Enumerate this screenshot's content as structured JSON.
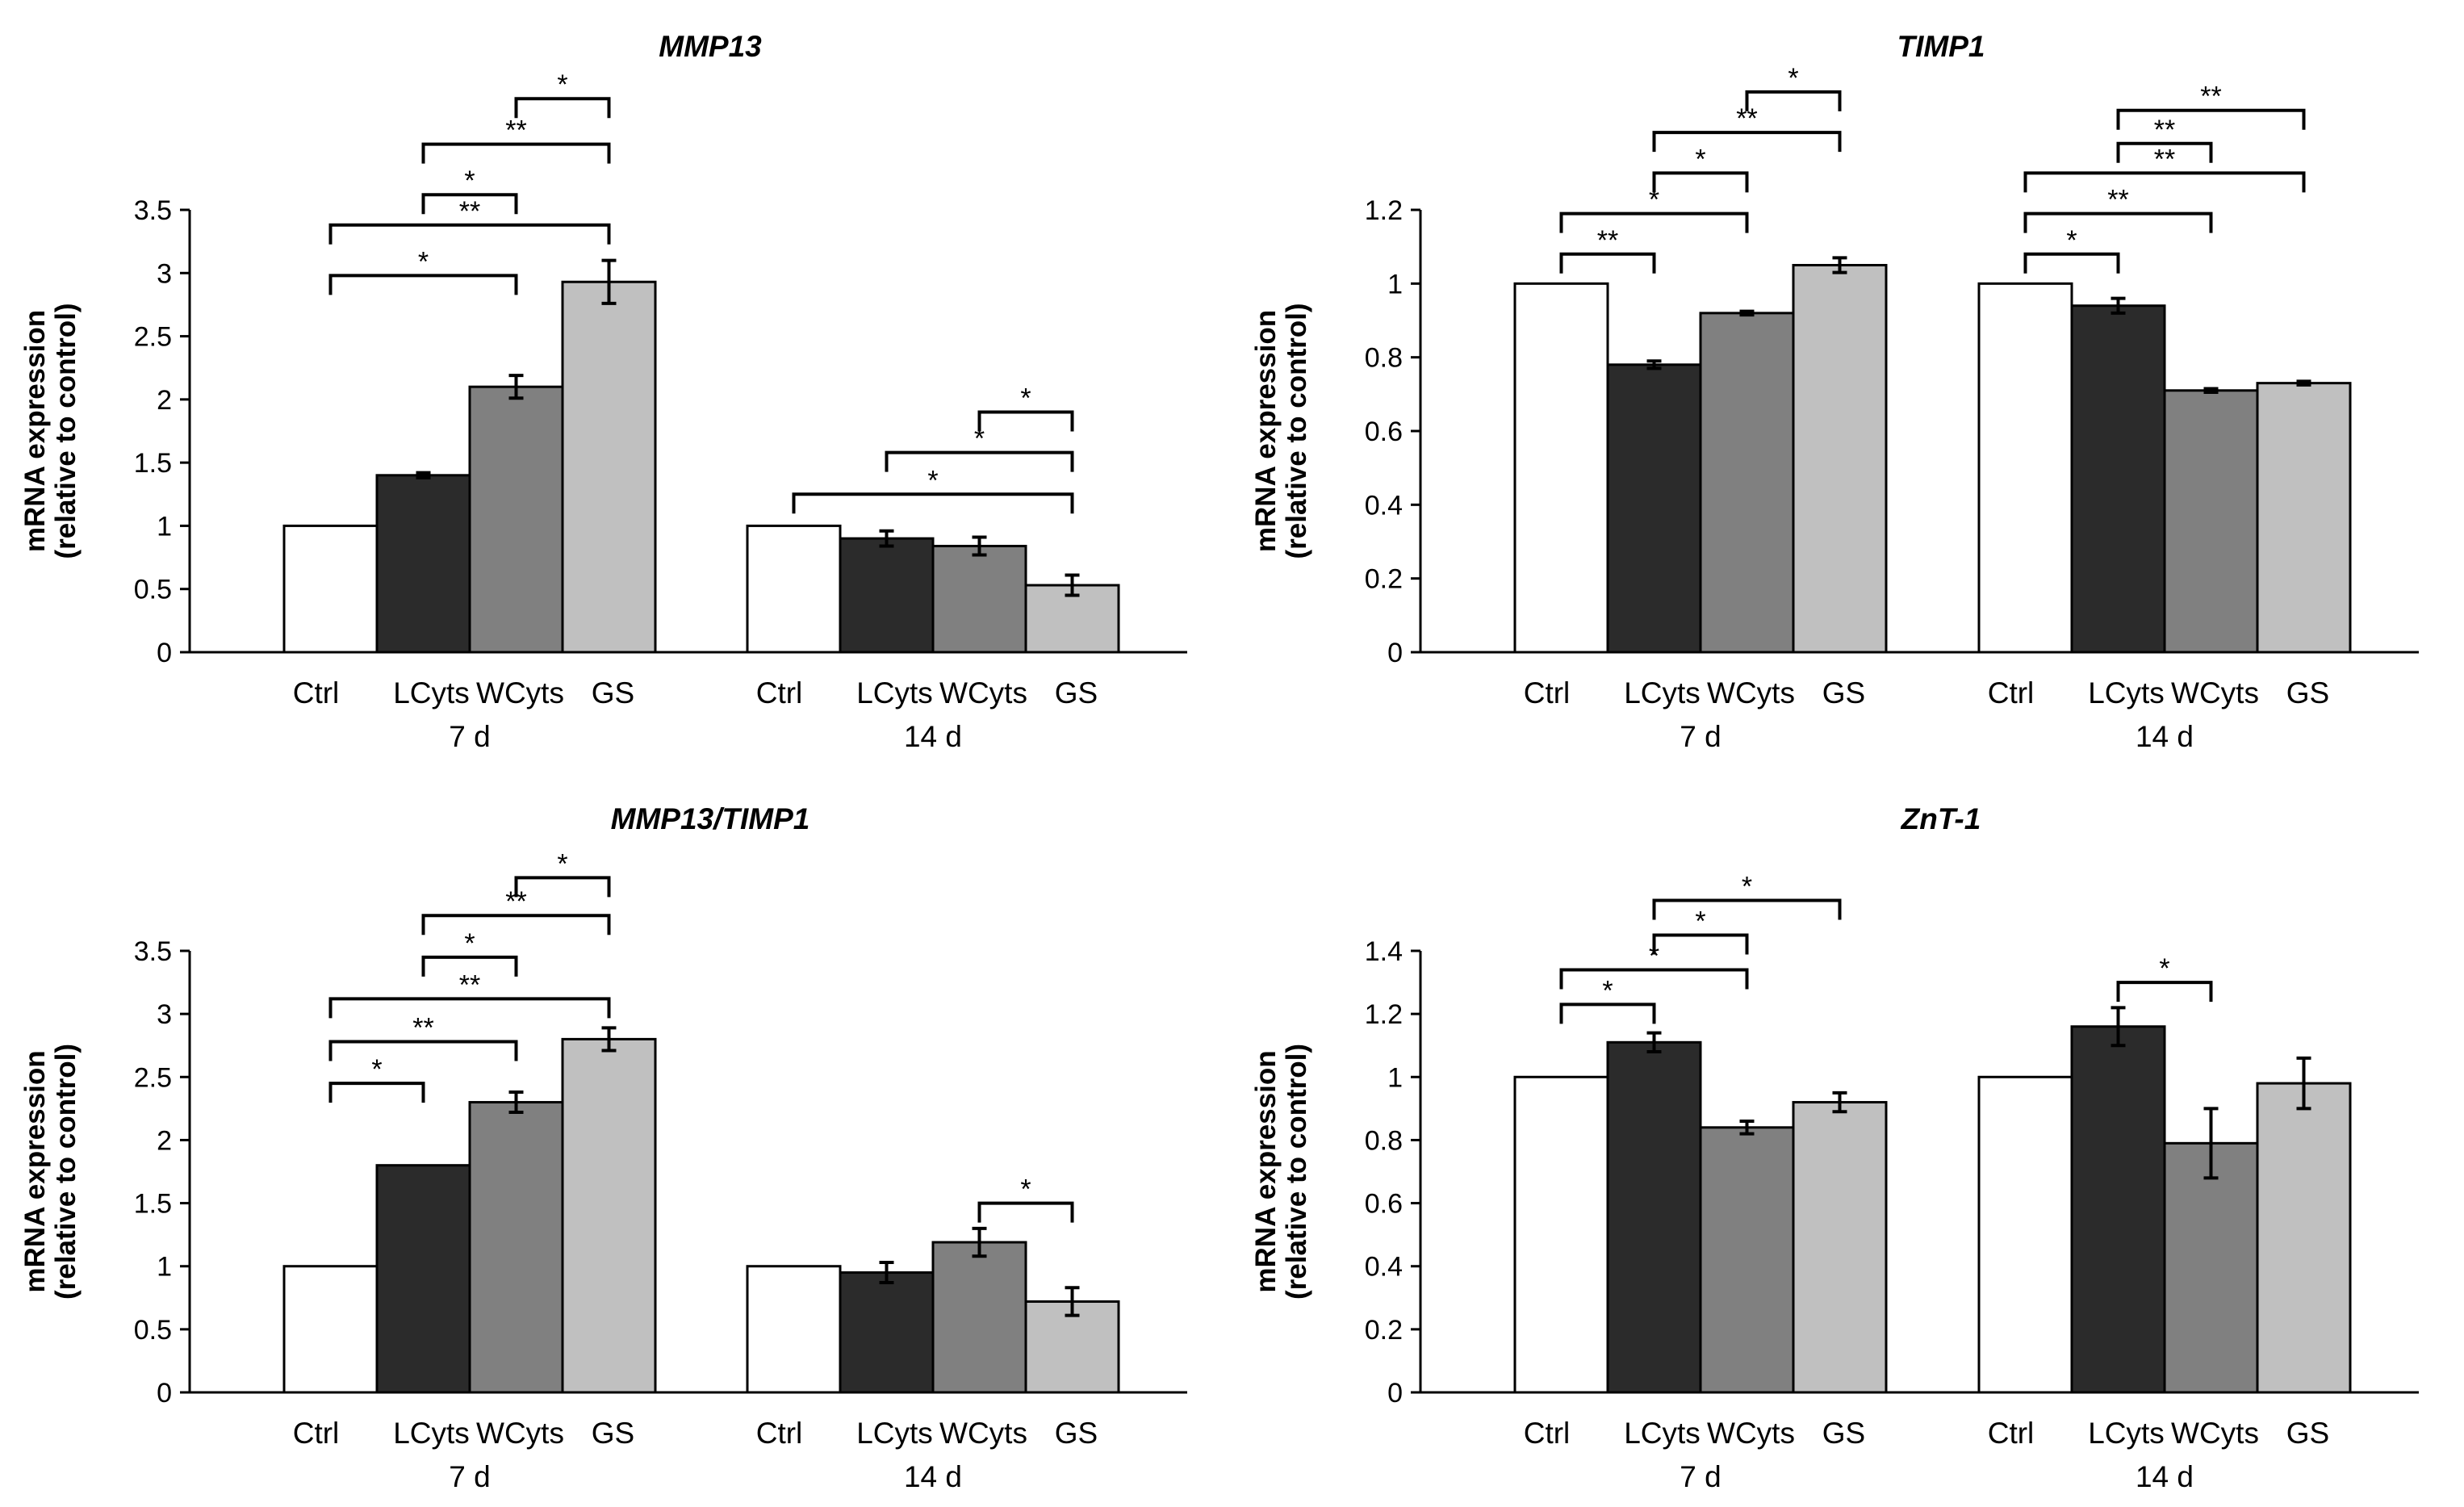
{
  "chart_data": [
    {
      "type": "bar",
      "title": "MMP13",
      "ylabel_line1": "mRNA expression",
      "ylabel_line2": "(relative to control)",
      "ylim": [
        0,
        3.5
      ],
      "yticks": [
        0,
        0.5,
        1,
        1.5,
        2,
        2.5,
        3,
        3.5
      ],
      "ytick_labels": [
        "0",
        "0.5",
        "1",
        "1.5",
        "2",
        "2.5",
        "3",
        "3.5"
      ],
      "categories": [
        "Ctrl",
        "LCyts",
        "WCyts",
        "GS"
      ],
      "series_colors": [
        "#ffffff",
        "#2b2b2b",
        "#808080",
        "#c0c0c0"
      ],
      "groups": [
        {
          "label": "7 d",
          "values": [
            1.0,
            1.4,
            2.1,
            2.93
          ],
          "errors": [
            0,
            0.02,
            0.09,
            0.17
          ]
        },
        {
          "label": "14 d",
          "values": [
            1.0,
            0.9,
            0.84,
            0.53
          ],
          "errors": [
            0,
            0.06,
            0.07,
            0.08
          ]
        }
      ],
      "significance": [
        {
          "group": 0,
          "from": 0,
          "to": 2,
          "y": 2.98,
          "label": "*"
        },
        {
          "group": 0,
          "from": 0,
          "to": 3,
          "y": 3.38,
          "label": "**"
        },
        {
          "group": 0,
          "from": 1,
          "to": 2,
          "y": 3.62,
          "label": "*"
        },
        {
          "group": 0,
          "from": 1,
          "to": 3,
          "y": 4.02,
          "label": "**"
        },
        {
          "group": 0,
          "from": 2,
          "to": 3,
          "y": 4.38,
          "label": "*"
        },
        {
          "group": 1,
          "from": 0,
          "to": 3,
          "y": 1.25,
          "label": "*"
        },
        {
          "group": 1,
          "from": 1,
          "to": 3,
          "y": 1.58,
          "label": "*"
        },
        {
          "group": 1,
          "from": 2,
          "to": 3,
          "y": 1.9,
          "label": "*"
        }
      ]
    },
    {
      "type": "bar",
      "title": "TIMP1",
      "ylabel_line1": "mRNA expression",
      "ylabel_line2": "(relative to control)",
      "ylim": [
        0,
        1.2
      ],
      "yticks": [
        0,
        0.2,
        0.4,
        0.6,
        0.8,
        1.0,
        1.2
      ],
      "ytick_labels": [
        "0",
        "0.2",
        "0.4",
        "0.6",
        "0.8",
        "1",
        "1.2"
      ],
      "categories": [
        "Ctrl",
        "LCyts",
        "WCyts",
        "GS"
      ],
      "series_colors": [
        "#ffffff",
        "#2b2b2b",
        "#808080",
        "#c0c0c0"
      ],
      "groups": [
        {
          "label": "7 d",
          "values": [
            1.0,
            0.78,
            0.92,
            1.05
          ],
          "errors": [
            0,
            0.01,
            0.005,
            0.02
          ]
        },
        {
          "label": "14 d",
          "values": [
            1.0,
            0.94,
            0.71,
            0.73
          ],
          "errors": [
            0,
            0.02,
            0.005,
            0.005
          ]
        }
      ],
      "significance": [
        {
          "group": 0,
          "from": 0,
          "to": 1,
          "y": 1.08,
          "label": "**"
        },
        {
          "group": 0,
          "from": 0,
          "to": 2,
          "y": 1.19,
          "label": "*"
        },
        {
          "group": 0,
          "from": 1,
          "to": 2,
          "y": 1.3,
          "label": "*"
        },
        {
          "group": 0,
          "from": 1,
          "to": 3,
          "y": 1.41,
          "label": "**"
        },
        {
          "group": 0,
          "from": 2,
          "to": 3,
          "y": 1.52,
          "label": "*"
        },
        {
          "group": 1,
          "from": 0,
          "to": 1,
          "y": 1.08,
          "label": "*"
        },
        {
          "group": 1,
          "from": 0,
          "to": 2,
          "y": 1.19,
          "label": "**"
        },
        {
          "group": 1,
          "from": 0,
          "to": 3,
          "y": 1.3,
          "label": "**"
        },
        {
          "group": 1,
          "from": 1,
          "to": 2,
          "y": 1.38,
          "label": "**"
        },
        {
          "group": 1,
          "from": 1,
          "to": 3,
          "y": 1.47,
          "label": "**"
        }
      ]
    },
    {
      "type": "bar",
      "title": "MMP13/TIMP1",
      "ylabel_line1": "mRNA expression",
      "ylabel_line2": "(relative to control)",
      "ylim": [
        0,
        3.5
      ],
      "yticks": [
        0,
        0.5,
        1,
        1.5,
        2,
        2.5,
        3,
        3.5
      ],
      "ytick_labels": [
        "0",
        "0.5",
        "1",
        "1.5",
        "2",
        "2.5",
        "3",
        "3.5"
      ],
      "categories": [
        "Ctrl",
        "LCyts",
        "WCyts",
        "GS"
      ],
      "series_colors": [
        "#ffffff",
        "#2b2b2b",
        "#808080",
        "#c0c0c0"
      ],
      "groups": [
        {
          "label": "7 d",
          "values": [
            1.0,
            1.8,
            2.3,
            2.8
          ],
          "errors": [
            0,
            0,
            0.08,
            0.09
          ]
        },
        {
          "label": "14 d",
          "values": [
            1.0,
            0.95,
            1.19,
            0.72
          ],
          "errors": [
            0,
            0.08,
            0.11,
            0.11
          ]
        }
      ],
      "significance": [
        {
          "group": 0,
          "from": 0,
          "to": 1,
          "y": 2.45,
          "label": "*"
        },
        {
          "group": 0,
          "from": 0,
          "to": 2,
          "y": 2.78,
          "label": "**"
        },
        {
          "group": 0,
          "from": 0,
          "to": 3,
          "y": 3.12,
          "label": "**"
        },
        {
          "group": 0,
          "from": 1,
          "to": 2,
          "y": 3.45,
          "label": "*"
        },
        {
          "group": 0,
          "from": 1,
          "to": 3,
          "y": 3.78,
          "label": "**"
        },
        {
          "group": 0,
          "from": 2,
          "to": 3,
          "y": 4.08,
          "label": "*"
        },
        {
          "group": 1,
          "from": 2,
          "to": 3,
          "y": 1.5,
          "label": "*"
        }
      ]
    },
    {
      "type": "bar",
      "title": "ZnT-1",
      "ylabel_line1": "mRNA expression",
      "ylabel_line2": "(relative to control)",
      "ylim": [
        0,
        1.4
      ],
      "yticks": [
        0,
        0.2,
        0.4,
        0.6,
        0.8,
        1.0,
        1.2,
        1.4
      ],
      "ytick_labels": [
        "0",
        "0.2",
        "0.4",
        "0.6",
        "0.8",
        "1",
        "1.2",
        "1.4"
      ],
      "categories": [
        "Ctrl",
        "LCyts",
        "WCyts",
        "GS"
      ],
      "series_colors": [
        "#ffffff",
        "#2b2b2b",
        "#808080",
        "#c0c0c0"
      ],
      "groups": [
        {
          "label": "7 d",
          "values": [
            1.0,
            1.11,
            0.84,
            0.92
          ],
          "errors": [
            0,
            0.03,
            0.02,
            0.03
          ]
        },
        {
          "label": "14 d",
          "values": [
            1.0,
            1.16,
            0.79,
            0.98
          ],
          "errors": [
            0,
            0.06,
            0.11,
            0.08
          ]
        }
      ],
      "significance": [
        {
          "group": 0,
          "from": 0,
          "to": 1,
          "y": 1.23,
          "label": "*"
        },
        {
          "group": 0,
          "from": 0,
          "to": 2,
          "y": 1.34,
          "label": "*"
        },
        {
          "group": 0,
          "from": 1,
          "to": 2,
          "y": 1.45,
          "label": "*"
        },
        {
          "group": 0,
          "from": 1,
          "to": 3,
          "y": 1.56,
          "label": "*"
        },
        {
          "group": 1,
          "from": 1,
          "to": 2,
          "y": 1.3,
          "label": "*"
        }
      ]
    }
  ]
}
